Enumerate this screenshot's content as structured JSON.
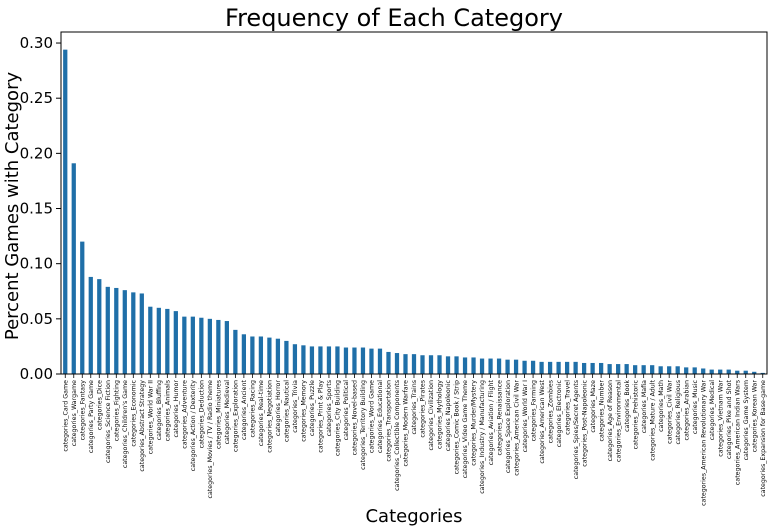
{
  "chart_data": {
    "type": "bar",
    "title": "Frequency of Each Category",
    "xlabel": "Categories",
    "ylabel": "Percent Games with Category",
    "ylim": [
      0,
      0.31
    ],
    "yticks": [
      "0.00",
      "0.05",
      "0.10",
      "0.15",
      "0.20",
      "0.25",
      "0.30"
    ],
    "bar_color": "#1f6fa8",
    "categories": [
      "categories_Card Game",
      "categories_Wargame",
      "categories_Fantasy",
      "categories_Party Game",
      "categories_Dice",
      "categories_Science Fiction",
      "categories_Fighting",
      "categories_Children's Game",
      "categories_Economic",
      "categories_Abstract Strategy",
      "categories_World War II",
      "categories_Bluffing",
      "categories_Animals",
      "categories_Humor",
      "categories_Adventure",
      "categories_Action / Dexterity",
      "categories_Deduction",
      "categories_Movies / TV / Radio theme",
      "categories_Miniatures",
      "categories_Medieval",
      "categories_Exploration",
      "categories_Ancient",
      "categories_Racing",
      "categories_Real-time",
      "categories_Negotiation",
      "categories_Horror",
      "categories_Nautical",
      "categories_Trivia",
      "categories_Memory",
      "categories_Puzzle",
      "categories_Print & Play",
      "categories_Sports",
      "categories_City Building",
      "categories_Political",
      "categories_Novel-based",
      "categories_Territory Building",
      "categories_Word Game",
      "categories_Educational",
      "categories_Transportation",
      "categories_Collectible Components",
      "categories_Modern Warfare",
      "categories_Trains",
      "categories_Pirates",
      "categories_Civilization",
      "categories_Mythology",
      "categories_Napoleonic",
      "categories_Comic Book / Strip",
      "categories_Video Game Theme",
      "categories_Murder/Mystery",
      "categories_Industry / Manufacturing",
      "categories_Aviation / Flight",
      "categories_Renaissance",
      "categories_Space Exploration",
      "categories_American Civil War",
      "categories_World War I",
      "categories_Farming",
      "categories_American West",
      "categories_Zombies",
      "categories_Electronic",
      "categories_Travel",
      "categories_Spies/Secret Agents",
      "categories_Post-Napoleonic",
      "categories_Maze",
      "categories_Number",
      "categories_Age of Reason",
      "categories_Environmental",
      "categories_Book",
      "categories_Prehistoric",
      "categories_Mafia",
      "categories_Mature / Adult",
      "categories_Math",
      "categories_Civil War",
      "categories_Religious",
      "categories_Arabian",
      "categories_Music",
      "categories_American Revolutionary War",
      "categories_Medical",
      "categories_Vietnam War",
      "categories_Pike and Shot",
      "categories_American Indian Wars",
      "categories_Game System",
      "categories_Korean War",
      "categories_Expansion for Base-game"
    ],
    "values": [
      0.294,
      0.191,
      0.12,
      0.088,
      0.086,
      0.079,
      0.078,
      0.076,
      0.074,
      0.073,
      0.061,
      0.06,
      0.059,
      0.057,
      0.052,
      0.052,
      0.051,
      0.05,
      0.049,
      0.048,
      0.04,
      0.036,
      0.034,
      0.034,
      0.033,
      0.032,
      0.03,
      0.027,
      0.026,
      0.025,
      0.025,
      0.025,
      0.025,
      0.024,
      0.024,
      0.024,
      0.023,
      0.023,
      0.02,
      0.019,
      0.018,
      0.018,
      0.017,
      0.017,
      0.017,
      0.016,
      0.016,
      0.015,
      0.015,
      0.014,
      0.014,
      0.014,
      0.013,
      0.013,
      0.012,
      0.012,
      0.011,
      0.011,
      0.011,
      0.011,
      0.011,
      0.01,
      0.01,
      0.01,
      0.009,
      0.009,
      0.009,
      0.008,
      0.008,
      0.008,
      0.007,
      0.007,
      0.007,
      0.006,
      0.006,
      0.005,
      0.004,
      0.004,
      0.004,
      0.003,
      0.003,
      0.002,
      0.001
    ]
  }
}
